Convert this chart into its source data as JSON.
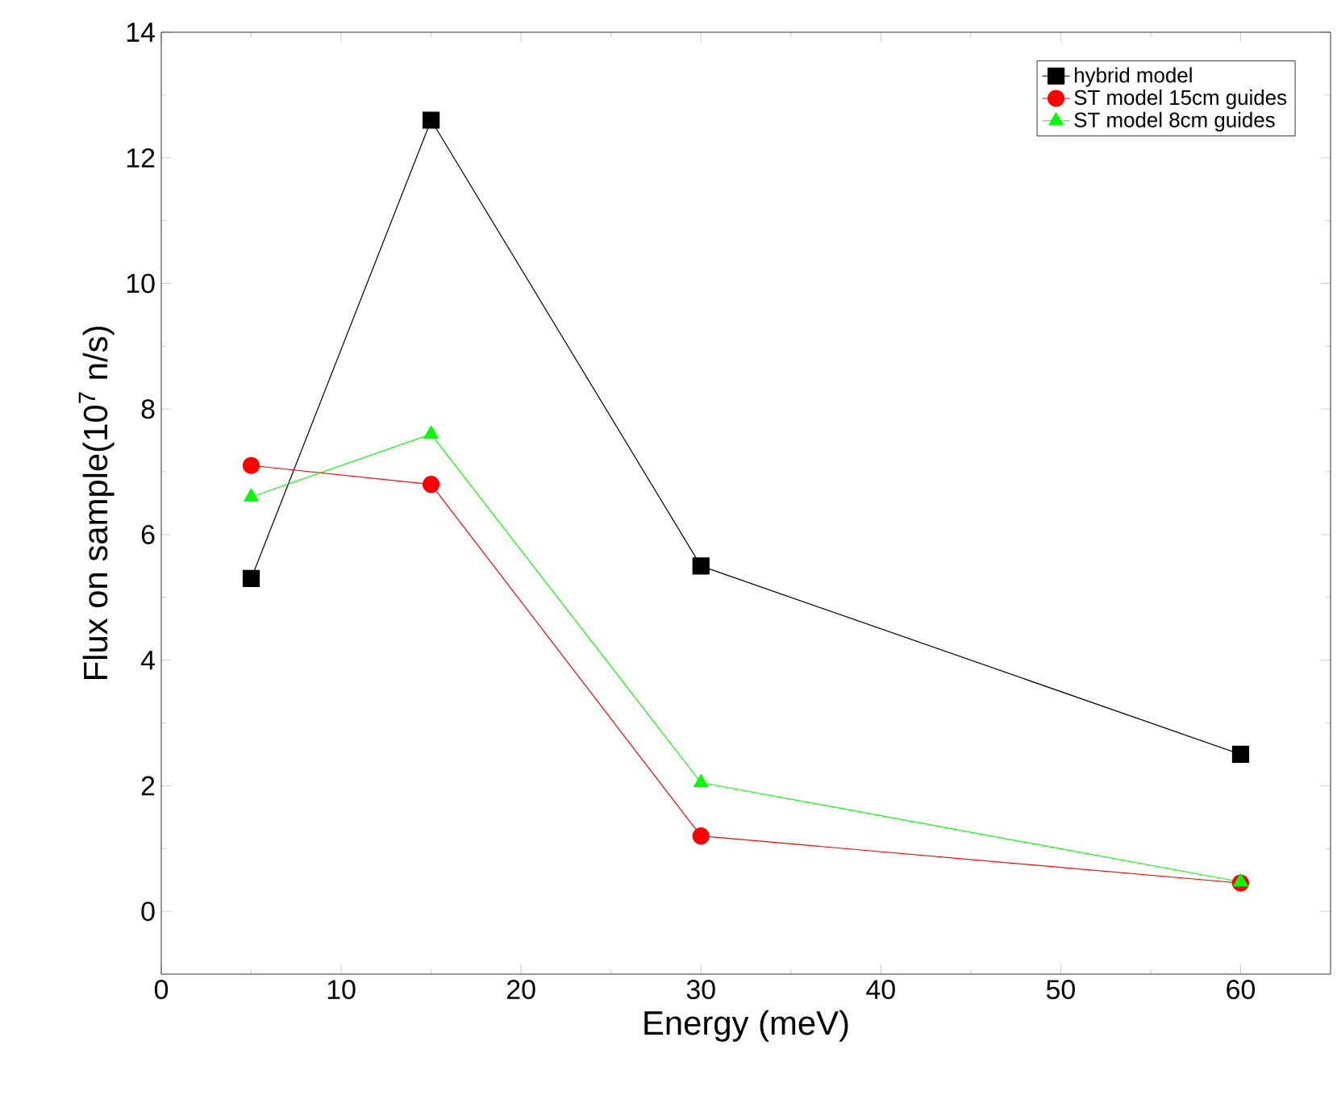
{
  "chart_data": {
    "type": "line",
    "xlabel": "Energy (meV)",
    "ylabel": "Flux on sample(10$^{7}$ n/s)",
    "xlim": [
      0,
      65
    ],
    "ylim": [
      -1,
      14
    ],
    "xticks": [
      0,
      10,
      20,
      30,
      40,
      50,
      60
    ],
    "yticks": [
      0,
      2,
      4,
      6,
      8,
      10,
      12,
      14
    ],
    "legend": "top right",
    "grid": false,
    "series": [
      {
        "name": "hybrid model",
        "color": "#000000",
        "marker": "square",
        "x": [
          5,
          15,
          30,
          60
        ],
        "values": [
          5.3,
          12.6,
          5.5,
          2.5
        ]
      },
      {
        "name": "ST model 15cm guides",
        "color": "#ff0000",
        "marker": "circle",
        "x": [
          5,
          15,
          30,
          60
        ],
        "values": [
          7.1,
          6.8,
          1.2,
          0.45
        ]
      },
      {
        "name": "ST model 8cm guides",
        "color": "#00ff00",
        "marker": "triangle",
        "x": [
          5,
          15,
          30,
          60
        ],
        "values": [
          6.6,
          7.6,
          2.05,
          0.47
        ]
      }
    ]
  }
}
